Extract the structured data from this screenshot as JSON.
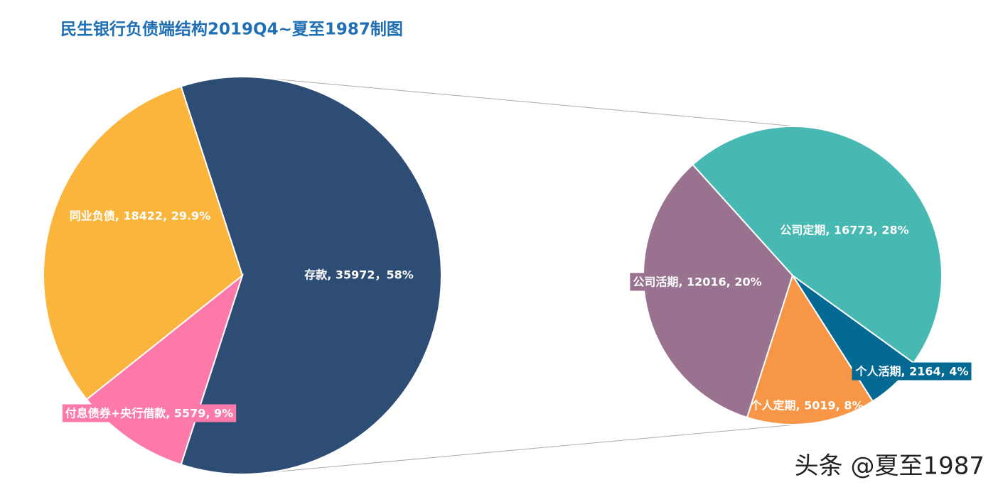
{
  "chart_data": [
    {
      "type": "pie",
      "title": "民生银行负债端结构2019Q4~夏至1987制图",
      "categories": [
        "存款",
        "付息债券+央行借款",
        "同业负债"
      ],
      "values": [
        35972,
        5579,
        18422
      ],
      "value_labels": [
        "存款, 35972，58%",
        "付息债券+央行借款, 5579, 9%",
        "同业负债, 18422, 29.9%"
      ],
      "colors": [
        "#2e4d74",
        "#fc79aa",
        "#fbb43c"
      ]
    },
    {
      "type": "pie",
      "categories": [
        "公司定期",
        "个人活期",
        "个人定期",
        "公司活期"
      ],
      "values": [
        16773,
        2164,
        5019,
        12016
      ],
      "value_labels": [
        "公司定期, 16773, 28%",
        "个人活期, 2164, 4%",
        "个人定期, 5019, 8%",
        "公司活期, 12016, 20%"
      ],
      "colors": [
        "#47b8b2",
        "#046a93",
        "#f79646",
        "#98728f"
      ]
    }
  ],
  "watermark": "头条 @夏至1987"
}
